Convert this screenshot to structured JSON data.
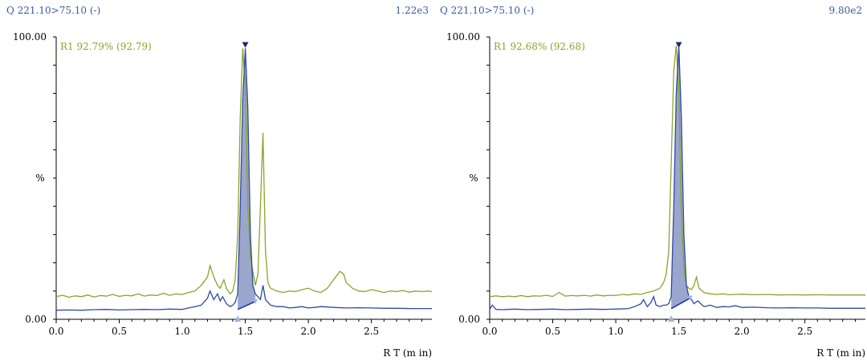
{
  "chart_data": [
    {
      "type": "line",
      "header_left": "Q 221.10>75.10 (-)",
      "header_right": "1.22e3",
      "ylabel": "%",
      "xlabel": "R T (m in)",
      "xlim": [
        0.0,
        2.98
      ],
      "ylim": [
        0,
        100
      ],
      "x_ticks": [
        "0.0",
        "0.5",
        "1.0",
        "1.5",
        "2.0",
        "2.5"
      ],
      "y_ticks": [
        "0.00",
        "100.00"
      ],
      "annotation": "R1 92.79% (92.79)",
      "grid": false,
      "colors": {
        "ref": "#8aa52a",
        "sample": "#2e4a9e",
        "peak_fill": "#8a96c4",
        "baseline": "#1a2fd0",
        "marker": "#9ab4ea"
      },
      "series": [
        {
          "key": "ref",
          "x": [
            0.0,
            0.05,
            0.1,
            0.15,
            0.2,
            0.25,
            0.3,
            0.35,
            0.4,
            0.45,
            0.5,
            0.55,
            0.6,
            0.65,
            0.7,
            0.75,
            0.8,
            0.85,
            0.9,
            0.95,
            1.0,
            1.05,
            1.1,
            1.15,
            1.2,
            1.22,
            1.25,
            1.28,
            1.3,
            1.33,
            1.35,
            1.38,
            1.4,
            1.42,
            1.44,
            1.46,
            1.48,
            1.5,
            1.52,
            1.54,
            1.56,
            1.58,
            1.6,
            1.62,
            1.64,
            1.66,
            1.68,
            1.7,
            1.75,
            1.8,
            1.85,
            1.9,
            1.95,
            2.0,
            2.05,
            2.1,
            2.15,
            2.2,
            2.25,
            2.28,
            2.3,
            2.35,
            2.4,
            2.45,
            2.5,
            2.55,
            2.6,
            2.65,
            2.7,
            2.75,
            2.8,
            2.85,
            2.9,
            2.95,
            2.98
          ],
          "y": [
            8,
            8.5,
            7.8,
            8.3,
            8,
            8.6,
            7.9,
            8.4,
            8.2,
            8.8,
            8.1,
            8.5,
            8.3,
            9,
            8.2,
            8.6,
            8.4,
            9.2,
            8.5,
            9,
            8.8,
            9.5,
            10,
            12,
            15,
            19,
            15,
            12,
            11,
            14,
            11,
            9,
            10,
            14,
            30,
            72,
            96,
            82,
            40,
            22,
            17,
            12,
            16,
            40,
            66,
            24,
            13,
            11,
            10,
            9.5,
            10,
            9.8,
            10.5,
            11,
            10,
            9.5,
            11,
            14,
            17,
            16,
            13,
            11,
            10,
            9.8,
            10.5,
            10,
            9.5,
            10,
            9.8,
            10.2,
            9.6,
            10,
            9.8,
            10,
            9.8
          ]
        },
        {
          "key": "sample",
          "x": [
            0.0,
            0.1,
            0.2,
            0.3,
            0.4,
            0.5,
            0.6,
            0.7,
            0.8,
            0.9,
            1.0,
            1.05,
            1.1,
            1.15,
            1.2,
            1.22,
            1.25,
            1.28,
            1.3,
            1.32,
            1.35,
            1.38,
            1.4,
            1.42,
            1.44,
            1.46,
            1.48,
            1.5,
            1.52,
            1.54,
            1.56,
            1.58,
            1.6,
            1.62,
            1.64,
            1.66,
            1.7,
            1.75,
            1.8,
            1.85,
            1.9,
            1.95,
            2.0,
            2.05,
            2.1,
            2.2,
            2.3,
            2.4,
            2.5,
            2.6,
            2.7,
            2.8,
            2.9,
            2.98
          ],
          "y": [
            3.2,
            3.3,
            3.2,
            3.4,
            3.5,
            3.3,
            3.4,
            3.5,
            3.4,
            3.6,
            3.5,
            4,
            4.5,
            5,
            7.5,
            10,
            7,
            9,
            6.5,
            8,
            5.5,
            4.5,
            5,
            6,
            9,
            40,
            78,
            96,
            75,
            30,
            12,
            9,
            8,
            7,
            12,
            7,
            5,
            4.5,
            4.5,
            4,
            4.2,
            4.5,
            4,
            4.2,
            4.5,
            4.2,
            4,
            4.1,
            4,
            3.9,
            3.9,
            3.8,
            3.8,
            3.8
          ]
        }
      ],
      "integration": {
        "start": [
          1.44,
          3.5
        ],
        "apex_x": 1.5,
        "apex_y": 97,
        "end": [
          1.58,
          6.3
        ]
      }
    },
    {
      "type": "line",
      "header_left": "Q 221.10>75.10 (-)",
      "header_right": "9.80e2",
      "ylabel": "%",
      "xlabel": "R T (m in)",
      "xlim": [
        0.0,
        2.98
      ],
      "ylim": [
        0,
        100
      ],
      "x_ticks": [
        "0.0",
        "0.5",
        "1.0",
        "1.5",
        "2.0",
        "2.5"
      ],
      "y_ticks": [
        "0.00",
        "100.00"
      ],
      "annotation": "R1 92.68% (92.68)",
      "grid": false,
      "colors": {
        "ref": "#8aa52a",
        "sample": "#2e4a9e",
        "peak_fill": "#8a96c4",
        "baseline": "#1a2fd0",
        "marker": "#9ab4ea"
      },
      "series": [
        {
          "key": "ref",
          "x": [
            0.0,
            0.05,
            0.1,
            0.15,
            0.2,
            0.25,
            0.3,
            0.35,
            0.4,
            0.45,
            0.5,
            0.55,
            0.6,
            0.65,
            0.7,
            0.75,
            0.8,
            0.85,
            0.9,
            0.95,
            1.0,
            1.05,
            1.1,
            1.15,
            1.2,
            1.25,
            1.3,
            1.35,
            1.38,
            1.4,
            1.42,
            1.44,
            1.46,
            1.48,
            1.5,
            1.52,
            1.54,
            1.56,
            1.58,
            1.6,
            1.62,
            1.64,
            1.66,
            1.7,
            1.75,
            1.8,
            1.85,
            1.9,
            1.95,
            2.0,
            2.1,
            2.2,
            2.3,
            2.4,
            2.5,
            2.6,
            2.7,
            2.8,
            2.9,
            2.98
          ],
          "y": [
            8,
            8.3,
            8,
            8.2,
            8,
            8.4,
            8,
            8.3,
            8.2,
            8.5,
            8.1,
            9.5,
            8.2,
            8.4,
            8.3,
            8.5,
            8.2,
            8.6,
            8.3,
            8.5,
            8.4,
            8.8,
            8.6,
            9,
            8.8,
            9.5,
            10,
            11,
            13,
            16,
            24,
            55,
            88,
            97,
            80,
            38,
            18,
            12,
            11,
            10.5,
            12,
            15,
            11,
            9.5,
            9,
            8.8,
            9,
            8.7,
            8.8,
            8.9,
            8.7,
            8.8,
            8.6,
            8.7,
            8.6,
            8.7,
            8.6,
            8.6,
            8.6,
            8.6
          ]
        },
        {
          "key": "sample",
          "x": [
            0.0,
            0.02,
            0.05,
            0.1,
            0.2,
            0.3,
            0.4,
            0.5,
            0.6,
            0.7,
            0.8,
            0.9,
            1.0,
            1.1,
            1.15,
            1.2,
            1.22,
            1.25,
            1.28,
            1.3,
            1.32,
            1.35,
            1.38,
            1.4,
            1.42,
            1.44,
            1.46,
            1.48,
            1.5,
            1.52,
            1.54,
            1.56,
            1.58,
            1.6,
            1.62,
            1.65,
            1.7,
            1.75,
            1.8,
            1.85,
            1.9,
            1.95,
            2.0,
            2.1,
            2.2,
            2.3,
            2.4,
            2.5,
            2.6,
            2.7,
            2.8,
            2.9,
            2.98
          ],
          "y": [
            3.5,
            5,
            3.5,
            3.4,
            3.6,
            3.4,
            3.5,
            3.6,
            3.4,
            3.5,
            3.6,
            3.5,
            3.6,
            3.8,
            4.5,
            5.5,
            7,
            4.5,
            6,
            8,
            5,
            4.5,
            5,
            5,
            5.5,
            8,
            40,
            80,
            97,
            72,
            30,
            12,
            8,
            7,
            5.5,
            6.5,
            4.5,
            5,
            4.2,
            4.5,
            4.4,
            4.8,
            4.2,
            4.3,
            4.1,
            4,
            4.1,
            4,
            4,
            3.9,
            3.9,
            3.9,
            3.9
          ]
        }
      ],
      "integration": {
        "start": [
          1.44,
          3.8
        ],
        "apex_x": 1.5,
        "apex_y": 97,
        "end": [
          1.59,
          7.5
        ]
      }
    }
  ]
}
